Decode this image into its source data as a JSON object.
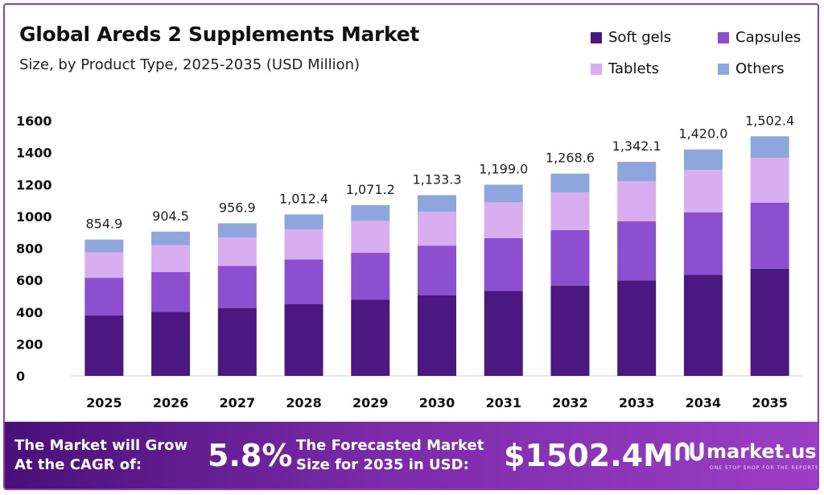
{
  "header": {
    "title": "Global Areds 2 Supplements Market",
    "subtitle": "Size, by Product Type, 2025-2035 (USD Million)"
  },
  "chart_data": {
    "type": "bar",
    "stacked": true,
    "categories": [
      "2025",
      "2026",
      "2027",
      "2028",
      "2029",
      "2030",
      "2031",
      "2032",
      "2033",
      "2034",
      "2035"
    ],
    "series": [
      {
        "name": "Soft gels",
        "color": "#4b1780",
        "values": [
          380,
          402,
          426,
          451,
          477,
          505,
          534,
          565,
          599,
          634,
          672
        ]
      },
      {
        "name": "Capsules",
        "color": "#8b4fcf",
        "values": [
          235,
          249,
          263,
          279,
          295,
          312,
          330,
          349,
          370,
          392,
          415
        ]
      },
      {
        "name": "Tablets",
        "color": "#d9aef0",
        "values": [
          160,
          169,
          179,
          189,
          200,
          212,
          224,
          237,
          251,
          265,
          281
        ]
      },
      {
        "name": "Others",
        "color": "#8fa6dd",
        "values": [
          79.9,
          84.5,
          88.9,
          93.4,
          99.2,
          104.3,
          111,
          117.6,
          122.1,
          129,
          134.4
        ]
      }
    ],
    "totals": [
      "854.9",
      "904.5",
      "956.9",
      "1,012.4",
      "1,071.2",
      "1,133.3",
      "1,199.0",
      "1,268.6",
      "1,342.1",
      "1,420.0",
      "1,502.4"
    ],
    "ylim": [
      0,
      1600
    ],
    "yticks": [
      "0",
      "200",
      "400",
      "600",
      "800",
      "1000",
      "1200",
      "1400",
      "1600"
    ],
    "grid": false,
    "legend_position": "top-right"
  },
  "footer": {
    "cagr_label_line1": "The Market will Grow",
    "cagr_label_line2": "At the CAGR of:",
    "cagr_value": "5.8%",
    "forecast_label_line1": "The Forecasted Market",
    "forecast_label_line2": "Size for 2035 in USD:",
    "forecast_value": "$1502.4M",
    "brand_name": "market.us",
    "brand_tagline": "ONE STOP SHOP FOR THE REPORTS"
  }
}
